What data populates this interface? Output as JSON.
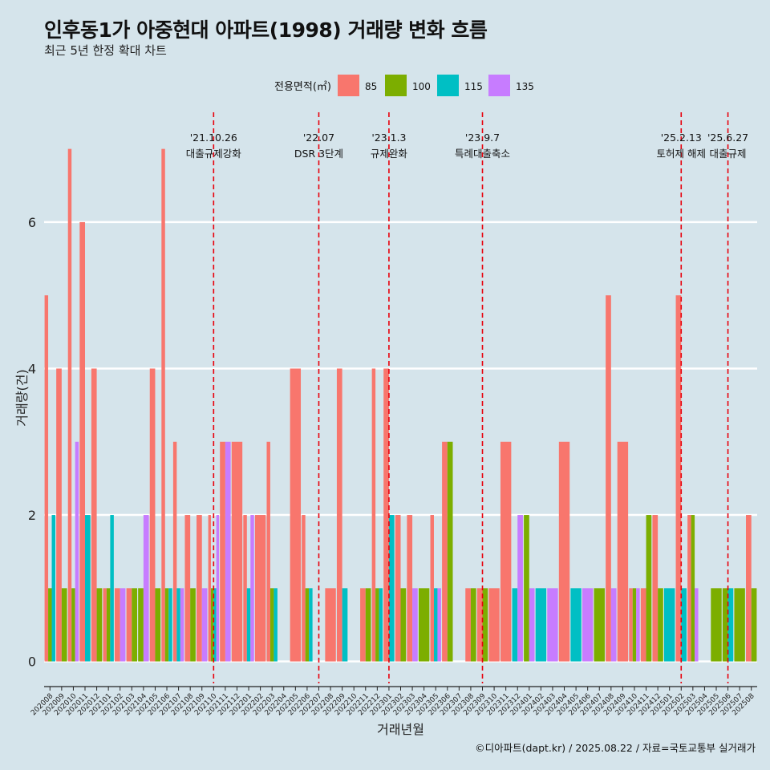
{
  "title": "인후동1가 아중현대 아파트(1998) 거래량 변화 흐름",
  "subtitle": "최근 5년 한정 확대 차트",
  "caption": "©디아파트(dapt.kr) / 2025.08.22 / 자료=국토교통부 실거래가",
  "colors": {
    "background": "#d5e4eb",
    "grid": "#ffffff",
    "event_line": "#e8000b"
  },
  "chart_data": {
    "type": "bar",
    "xlabel": "거래년월",
    "ylabel": "거래량(건)",
    "ylim": [
      -0.3,
      7.5
    ],
    "yticks": [
      0,
      2,
      4,
      6
    ],
    "grid": true,
    "legend": {
      "title": "전용면적(㎡)",
      "position": "top"
    },
    "categories": [
      "202008",
      "202009",
      "202010",
      "202011",
      "202012",
      "202101",
      "202102",
      "202103",
      "202104",
      "202105",
      "202106",
      "202107",
      "202108",
      "202109",
      "202110",
      "202111",
      "202112",
      "202201",
      "202202",
      "202203",
      "202204",
      "202205",
      "202206",
      "202207",
      "202208",
      "202209",
      "202210",
      "202211",
      "202212",
      "202301",
      "202302",
      "202303",
      "202304",
      "202305",
      "202306",
      "202307",
      "202308",
      "202309",
      "202310",
      "202311",
      "202312",
      "202401",
      "202402",
      "202403",
      "202404",
      "202405",
      "202406",
      "202407",
      "202408",
      "202409",
      "202410",
      "202411",
      "202412",
      "202501",
      "202502",
      "202503",
      "202504",
      "202505",
      "202506",
      "202507",
      "202508"
    ],
    "series": [
      {
        "name": "85",
        "color": "#f8766d",
        "values": [
          5,
          4,
          7,
          6,
          4,
          1,
          1,
          1,
          0,
          4,
          7,
          3,
          2,
          2,
          2,
          3,
          3,
          2,
          2,
          3,
          0,
          4,
          2,
          0,
          1,
          4,
          0,
          1,
          4,
          4,
          2,
          2,
          0,
          2,
          3,
          0,
          1,
          1,
          1,
          3,
          0,
          0,
          0,
          0,
          3,
          0,
          0,
          0,
          5,
          3,
          1,
          1,
          2,
          0,
          5,
          2,
          0,
          0,
          0,
          0,
          2
        ]
      },
      {
        "name": "100",
        "color": "#7cae00",
        "values": [
          1,
          1,
          1,
          0,
          1,
          1,
          0,
          1,
          1,
          1,
          1,
          0,
          1,
          0,
          1,
          0,
          0,
          0,
          0,
          1,
          0,
          0,
          1,
          0,
          0,
          0,
          0,
          1,
          1,
          0,
          1,
          0,
          1,
          0,
          3,
          0,
          1,
          1,
          0,
          0,
          0,
          2,
          0,
          0,
          0,
          0,
          0,
          1,
          0,
          0,
          1,
          2,
          1,
          0,
          0,
          2,
          0,
          1,
          1,
          1,
          1
        ]
      },
      {
        "name": "115",
        "color": "#00bfc4",
        "values": [
          2,
          0,
          0,
          2,
          0,
          2,
          0,
          0,
          0,
          0,
          1,
          1,
          0,
          0,
          1,
          0,
          0,
          1,
          0,
          1,
          0,
          0,
          1,
          0,
          0,
          1,
          0,
          0,
          1,
          2,
          0,
          0,
          0,
          1,
          0,
          0,
          0,
          0,
          0,
          0,
          1,
          0,
          1,
          0,
          0,
          1,
          0,
          0,
          0,
          0,
          0,
          0,
          0,
          1,
          1,
          0,
          0,
          0,
          1,
          0,
          0
        ]
      },
      {
        "name": "135",
        "color": "#c77cff",
        "values": [
          0,
          0,
          3,
          0,
          0,
          0,
          1,
          0,
          2,
          0,
          0,
          1,
          0,
          1,
          2,
          3,
          0,
          2,
          0,
          0,
          0,
          0,
          0,
          0,
          0,
          0,
          0,
          0,
          0,
          0,
          0,
          1,
          0,
          1,
          0,
          0,
          0,
          0,
          0,
          0,
          2,
          1,
          0,
          1,
          0,
          0,
          1,
          0,
          1,
          0,
          1,
          0,
          0,
          0,
          0,
          1,
          0,
          0,
          0,
          0,
          0
        ]
      }
    ],
    "events": [
      {
        "date": "'21.10.26",
        "label": "대출규제강화",
        "at": "202110"
      },
      {
        "date": "'22.07",
        "label": "DSR 3단계",
        "at": "202207"
      },
      {
        "date": "'23.1.3",
        "label": "규제완화",
        "at": "202301"
      },
      {
        "date": "'23.9.7",
        "label": "특례대출축소",
        "at": "202309"
      },
      {
        "date": "'25.2.13",
        "label": "토허제 해제",
        "at": "202502"
      },
      {
        "date": "'25.6.27",
        "label": "대출규제",
        "at": "202506"
      }
    ]
  }
}
